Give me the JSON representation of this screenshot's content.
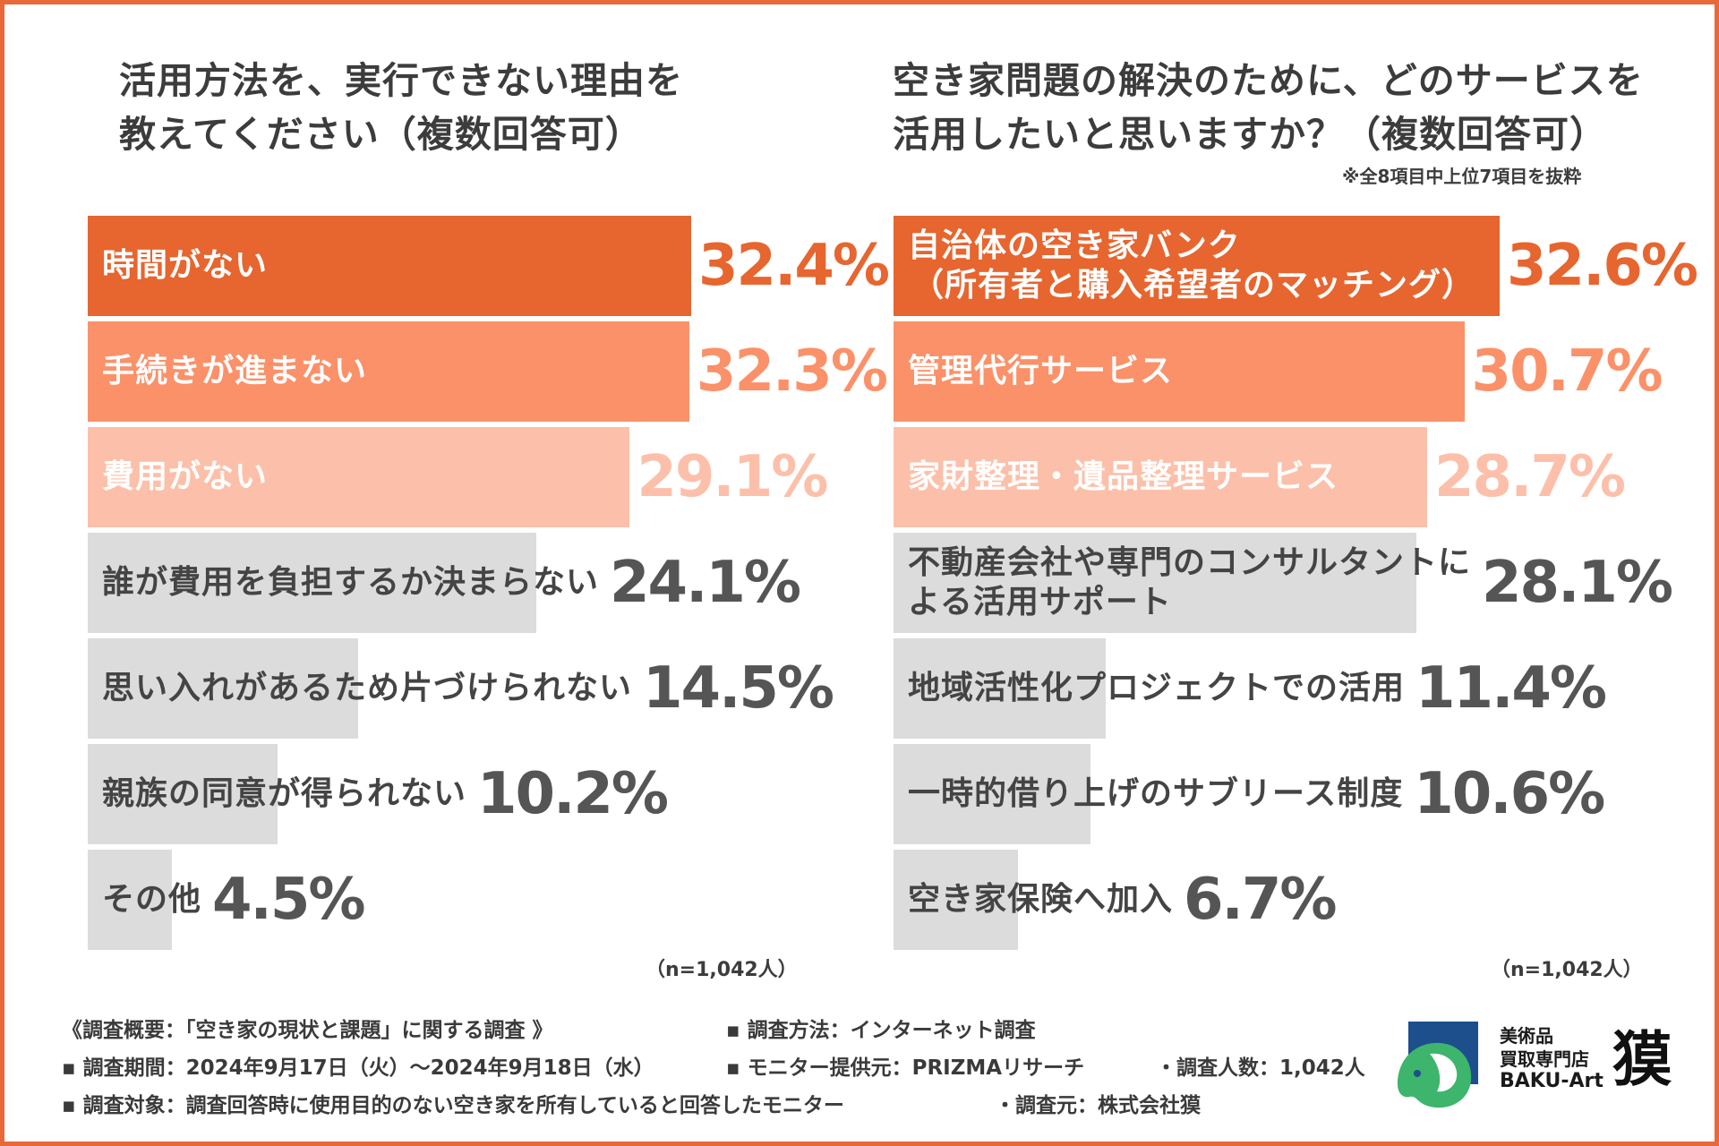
{
  "left_chart": {
    "title_line1": "活用方法を、実行できない理由を",
    "title_line2": "教えてください（複数回答可）",
    "sample": "（n=1,042人）"
  },
  "right_chart": {
    "title_line1": "空き家問題の解決のために、どのサービスを",
    "title_line2": "活用したいと思いますか？（複数回答可）",
    "note": "※全8項目中上位7項目を抜粋",
    "sample": "（n=1,042人）"
  },
  "chart_data": [
    {
      "type": "bar",
      "orientation": "horizontal",
      "title": "活用方法を、実行できない理由を教えてください（複数回答可）",
      "unit": "%",
      "xlim": [
        0,
        32.4
      ],
      "categories": [
        [
          "時間がない"
        ],
        [
          "手続きが進まない"
        ],
        [
          "費用がない"
        ],
        [
          "誰が費用を負担するか決まらない"
        ],
        [
          "思い入れがあるため片づけられない"
        ],
        [
          "親族の同意が得られない"
        ],
        [
          "その他"
        ]
      ],
      "values": [
        32.4,
        32.3,
        29.1,
        24.1,
        14.5,
        10.2,
        4.5
      ],
      "labels": [
        "32.4%",
        "32.3%",
        "29.1%",
        "24.1%",
        "14.5%",
        "10.2%",
        "4.5%"
      ]
    },
    {
      "type": "bar",
      "orientation": "horizontal",
      "title": "空き家問題の解決のために、どのサービスを活用したいと思いますか？（複数回答可）",
      "unit": "%",
      "xlim": [
        0,
        32.6
      ],
      "categories": [
        [
          "自治体の空き家バンク",
          "（所有者と購入希望者のマッチング）"
        ],
        [
          "管理代行サービス"
        ],
        [
          "家財整理・遺品整理サービス"
        ],
        [
          "不動産会社や専門のコンサルタントに",
          "よる活用サポート"
        ],
        [
          "地域活性化プロジェクトでの活用"
        ],
        [
          "一時的借り上げのサブリース制度"
        ],
        [
          "空き家保険へ加入"
        ]
      ],
      "values": [
        32.6,
        30.7,
        28.7,
        28.1,
        11.4,
        10.6,
        6.7
      ],
      "labels": [
        "32.6%",
        "30.7%",
        "28.7%",
        "28.1%",
        "11.4%",
        "10.6%",
        "6.7%"
      ]
    }
  ],
  "colors": {
    "rank1_bar": "#e7652f",
    "rank2_bar": "#fb9169",
    "rank3_bar": "#fcc0aa",
    "other_bar": "#dcdcdc",
    "rank1_pct": "#e7652f",
    "rank2_pct": "#fb9169",
    "rank3_pct": "#fcc0aa",
    "other_pct": "#555555",
    "highlight_label": "#ffffff",
    "other_label": "#444444",
    "border": "#e7693a"
  },
  "footer": {
    "line1_a": "《調査概要：「空き家の現状と課題」に関する調査 》",
    "line1_b": "▪ 調査方法：インターネット調査",
    "line2_a": "▪ 調査期間：2024年9月17日（火）〜2024年9月18日（水）",
    "line2_b": "▪ モニター提供元：PRIZMAリサーチ",
    "line2_c": "・調査人数：1,042人",
    "line3_a": "▪ 調査対象：調査回答時に使用目的のない空き家を所有していると回答したモニター",
    "line3_b": "・調査元：株式会社獏"
  },
  "logo": {
    "line1": "美術品",
    "line2": "買取専門店",
    "line3": "BAKU-Art",
    "kanji": "獏"
  }
}
